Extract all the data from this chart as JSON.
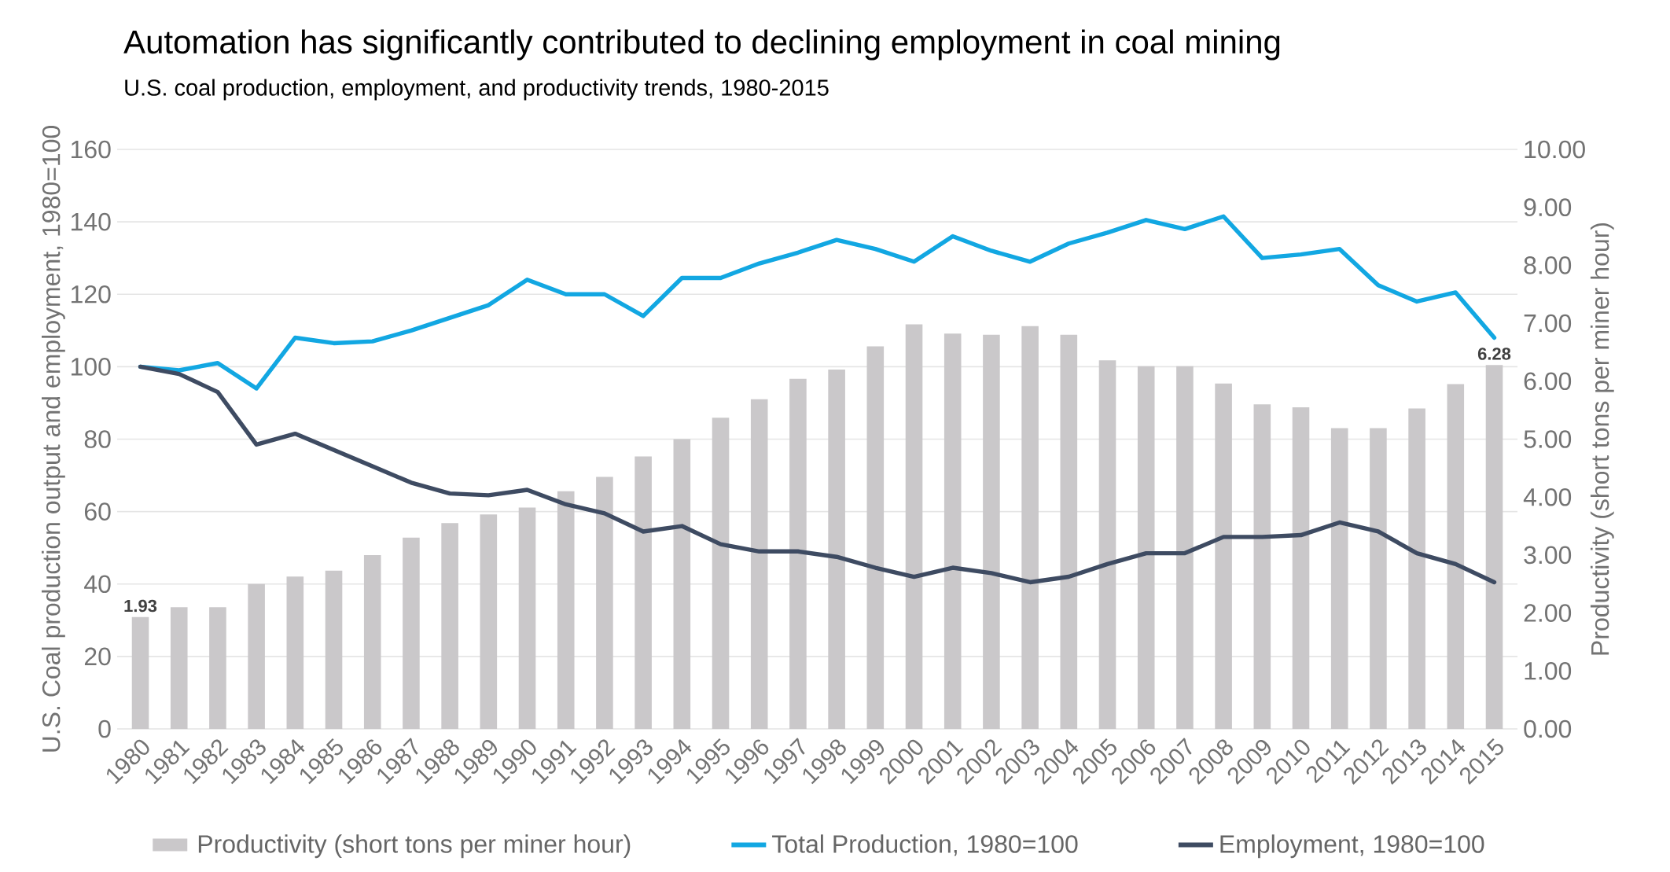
{
  "chart_data": {
    "type": "line",
    "title": "Automation has significantly contributed to declining employment in coal mining",
    "subtitle": "U.S. coal production, employment, and productivity trends, 1980-2015",
    "ylabel": "U.S. Coal production output and employment, 1980=100",
    "y2label": "Productivity (short tons per miner hour)",
    "categories": [
      "1980",
      "1981",
      "1982",
      "1983",
      "1984",
      "1985",
      "1986",
      "1987",
      "1988",
      "1989",
      "1990",
      "1991",
      "1992",
      "1993",
      "1994",
      "1995",
      "1996",
      "1997",
      "1998",
      "1999",
      "2000",
      "2001",
      "2002",
      "2003",
      "2004",
      "2005",
      "2006",
      "2007",
      "2008",
      "2009",
      "2010",
      "2011",
      "2012",
      "2013",
      "2014",
      "2015"
    ],
    "series": [
      {
        "name": "Productivity (short tons per miner hour)",
        "type": "bar",
        "axis": "y2",
        "color": "#cac8ca",
        "values": [
          1.93,
          2.1,
          2.1,
          2.5,
          2.63,
          2.73,
          3.0,
          3.3,
          3.55,
          3.7,
          3.82,
          4.1,
          4.35,
          4.7,
          5.0,
          5.37,
          5.69,
          6.04,
          6.2,
          6.6,
          6.98,
          6.82,
          6.8,
          6.95,
          6.8,
          6.36,
          6.26,
          6.26,
          5.96,
          5.6,
          5.55,
          5.19,
          5.19,
          5.53,
          5.95,
          6.28
        ],
        "value_labels": [
          "1.93",
          null,
          null,
          null,
          null,
          null,
          null,
          null,
          null,
          null,
          null,
          null,
          null,
          null,
          null,
          null,
          null,
          null,
          null,
          null,
          null,
          null,
          null,
          null,
          null,
          null,
          null,
          null,
          null,
          null,
          null,
          null,
          null,
          null,
          null,
          "6.28"
        ]
      },
      {
        "name": "Total Production, 1980=100",
        "color": "#12a7e2",
        "values": [
          100,
          99,
          101,
          94,
          108,
          106.5,
          107,
          110,
          113.5,
          117,
          124,
          120,
          120,
          114,
          124.5,
          124.5,
          128.5,
          131.5,
          135,
          132.5,
          129,
          136,
          132,
          129,
          134,
          137,
          140.5,
          138,
          141.5,
          130,
          131,
          132.5,
          122.5,
          118,
          120.5,
          108
        ]
      },
      {
        "name": "Employment, 1980=100",
        "color": "#3e4b62",
        "values": [
          100,
          98,
          93,
          78.5,
          81.5,
          77,
          72.5,
          68,
          65,
          64.5,
          66,
          62,
          59.5,
          54.5,
          56,
          51,
          49,
          49,
          47.5,
          44.5,
          42,
          44.5,
          43,
          40.5,
          42,
          45.5,
          48.5,
          48.5,
          53,
          53,
          53.5,
          57,
          54.5,
          48.5,
          45.5,
          40.5
        ]
      }
    ],
    "ylim": [
      0,
      160
    ],
    "yticks": [
      0,
      20,
      40,
      60,
      80,
      100,
      120,
      140,
      160
    ],
    "y2lim": [
      0,
      10
    ],
    "y2ticks": [
      {
        "value": 0,
        "label": "0.00"
      },
      {
        "value": 1,
        "label": "1.00"
      },
      {
        "value": 2,
        "label": "2.00"
      },
      {
        "value": 3,
        "label": "3.00"
      },
      {
        "value": 4,
        "label": "4.00"
      },
      {
        "value": 5,
        "label": "5.00"
      },
      {
        "value": 6,
        "label": "6.00"
      },
      {
        "value": 7,
        "label": "7.00"
      },
      {
        "value": 8,
        "label": "8.00"
      },
      {
        "value": 9,
        "label": "9.00"
      },
      {
        "value": 10,
        "label": "10.00"
      }
    ],
    "grid": "y",
    "legend": "bottom"
  }
}
